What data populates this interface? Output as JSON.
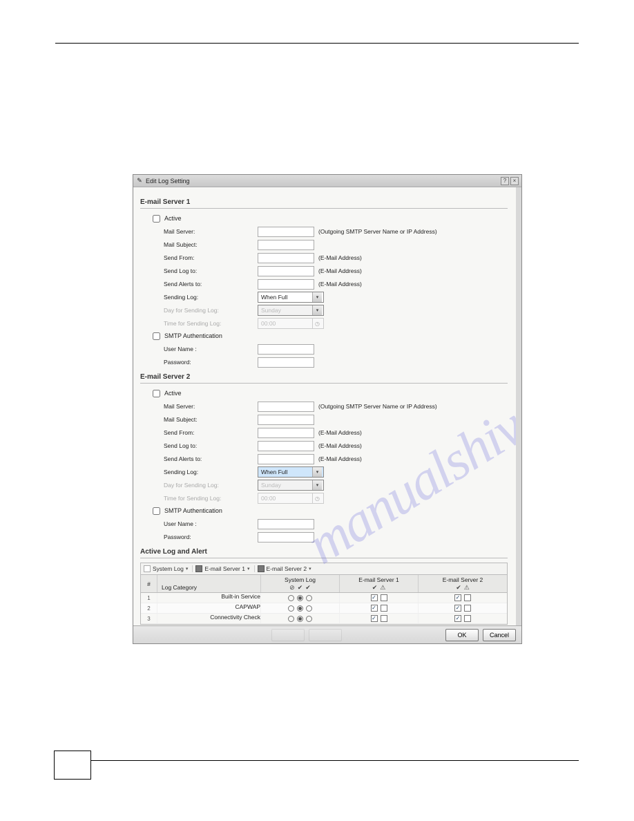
{
  "dialog": {
    "title": "Edit Log Setting",
    "help_label": "?",
    "close_label": "×"
  },
  "sections": {
    "email1": {
      "title": "E-mail Server 1",
      "active": "Active",
      "mail_server": "Mail Server:",
      "mail_server_hint": "(Outgoing SMTP Server Name or IP Address)",
      "mail_subject": "Mail Subject:",
      "send_from": "Send From:",
      "send_log_to": "Send Log to:",
      "send_alerts_to": "Send Alerts to:",
      "email_hint": "(E-Mail Address)",
      "sending_log": "Sending Log:",
      "sending_log_value": "When Full",
      "day_label": "Day for Sending Log:",
      "day_value": "Sunday",
      "time_label": "Time for Sending Log:",
      "time_value": "00:00",
      "smtp_auth": "SMTP Authentication",
      "user_name": "User Name :",
      "password": "Password:"
    },
    "email2": {
      "title": "E-mail Server 2",
      "active": "Active",
      "mail_server": "Mail Server:",
      "mail_server_hint": "(Outgoing SMTP Server Name or IP Address)",
      "mail_subject": "Mail Subject:",
      "send_from": "Send From:",
      "send_log_to": "Send Log to:",
      "send_alerts_to": "Send Alerts to:",
      "email_hint": "(E-Mail Address)",
      "sending_log": "Sending Log:",
      "sending_log_value": "When Full",
      "day_label": "Day for Sending Log:",
      "day_value": "Sunday",
      "time_label": "Time for Sending Log:",
      "time_value": "00:00",
      "smtp_auth": "SMTP Authentication",
      "user_name": "User Name :",
      "password": "Password:"
    },
    "active_log": {
      "title": "Active Log and Alert",
      "toolbar": {
        "system_log": "System Log",
        "email1": "E-mail Server 1",
        "email2": "E-mail Server 2"
      },
      "columns": {
        "num": "#",
        "category": "Log Category",
        "syslog": "System Log",
        "email1": "E-mail Server 1",
        "email2": "E-mail Server 2"
      },
      "rows": [
        {
          "n": "1",
          "cat": "Built-in Service"
        },
        {
          "n": "2",
          "cat": "CAPWAP"
        },
        {
          "n": "3",
          "cat": "Connectivity Check"
        }
      ]
    }
  },
  "buttons": {
    "ok": "OK",
    "cancel": "Cancel"
  },
  "watermark": "manualshive.com"
}
